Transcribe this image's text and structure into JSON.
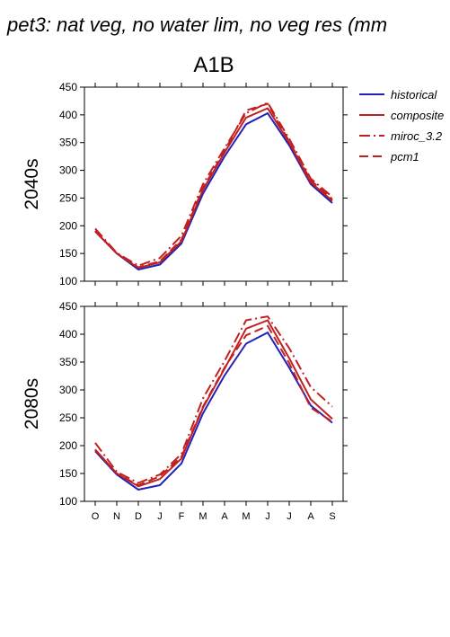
{
  "figure": {
    "title": "pet3: nat veg, no water lim, no veg res (mm",
    "scenario": "A1B"
  },
  "legend": {
    "placement": "right",
    "entries": [
      {
        "label": "historical",
        "color": "#2222bb",
        "dash": "solid"
      },
      {
        "label": "composite",
        "color": "#c02020",
        "dash": "solid"
      },
      {
        "label": "miroc_3.2",
        "color": "#c02020",
        "dash": "dashdot"
      },
      {
        "label": "pcm1",
        "color": "#c02020",
        "dash": "dashed"
      }
    ]
  },
  "chart_data": [
    {
      "type": "line",
      "ylabel": "2040s",
      "xlabel": "",
      "categories": [
        "O",
        "N",
        "D",
        "J",
        "F",
        "M",
        "A",
        "M",
        "J",
        "J",
        "A",
        "S"
      ],
      "ylim": [
        100,
        450
      ],
      "yticks": [
        100,
        150,
        200,
        250,
        300,
        350,
        400,
        450
      ],
      "series": [
        {
          "name": "historical",
          "values": [
            190,
            150,
            121,
            130,
            168,
            258,
            325,
            383,
            403,
            345,
            275,
            241
          ]
        },
        {
          "name": "composite",
          "values": [
            190,
            150,
            124,
            134,
            172,
            265,
            332,
            395,
            412,
            350,
            278,
            245
          ]
        },
        {
          "name": "miroc_3.2",
          "values": [
            195,
            151,
            128,
            142,
            182,
            275,
            340,
            403,
            422,
            357,
            285,
            252
          ]
        },
        {
          "name": "pcm1",
          "values": [
            191,
            150,
            125,
            136,
            175,
            268,
            335,
            408,
            420,
            352,
            282,
            248
          ]
        }
      ]
    },
    {
      "type": "line",
      "ylabel": "2080s",
      "xlabel": "",
      "categories": [
        "O",
        "N",
        "D",
        "J",
        "F",
        "M",
        "A",
        "M",
        "J",
        "J",
        "A",
        "S"
      ],
      "ylim": [
        100,
        450
      ],
      "yticks": [
        100,
        150,
        200,
        250,
        300,
        350,
        400,
        450
      ],
      "series": [
        {
          "name": "historical",
          "values": [
            190,
            148,
            121,
            129,
            168,
            258,
            326,
            383,
            403,
            340,
            272,
            241
          ]
        },
        {
          "name": "composite",
          "values": [
            193,
            150,
            127,
            140,
            177,
            268,
            338,
            410,
            425,
            357,
            283,
            248
          ]
        },
        {
          "name": "miroc_3.2",
          "values": [
            205,
            153,
            133,
            148,
            185,
            285,
            352,
            425,
            432,
            375,
            305,
            270
          ]
        },
        {
          "name": "pcm1",
          "values": [
            192,
            150,
            129,
            145,
            180,
            270,
            340,
            398,
            415,
            348,
            268,
            243
          ]
        }
      ]
    }
  ]
}
